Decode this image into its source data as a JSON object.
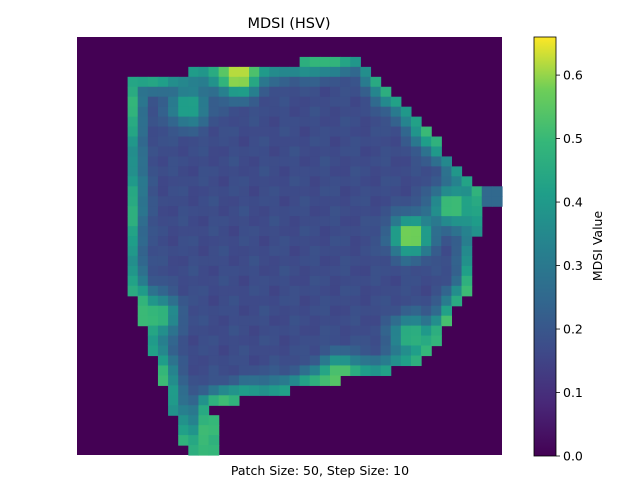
{
  "chart_data": {
    "type": "heatmap",
    "title": "MDSI (HSV)",
    "xlabel": "Patch Size: 50, Step Size: 10",
    "ylabel": "",
    "axes_visible": false,
    "colormap": "viridis",
    "grid_shape": [
      42,
      42
    ],
    "colorbar": {
      "label": "MDSI Value",
      "vmin": 0.0,
      "vmax": 0.66,
      "ticks": [
        0.0,
        0.1,
        0.2,
        0.3,
        0.4,
        0.5,
        0.6
      ],
      "tick_labels": [
        "0.0",
        "0.1",
        "0.2",
        "0.3",
        "0.4",
        "0.5",
        "0.6"
      ]
    },
    "region": {
      "description_values": {
        "background": 0.0,
        "interior_mean": 0.17,
        "border_mean": 0.45,
        "hotspots_max": 0.66
      },
      "polygon": [
        [
          5,
          4
        ],
        [
          28,
          2
        ],
        [
          36,
          11
        ],
        [
          40,
          15
        ],
        [
          39,
          25
        ],
        [
          34,
          33
        ],
        [
          13,
          37
        ],
        [
          12,
          42
        ],
        [
          11,
          42
        ],
        [
          5,
          24
        ]
      ],
      "notch": {
        "x": [
          39,
          42
        ],
        "y": [
          15,
          17
        ],
        "value": 0.25
      },
      "stem": {
        "x": [
          11,
          14
        ],
        "y": [
          38,
          42
        ],
        "value": 0.5
      },
      "hotspots": [
        {
          "x": 16,
          "y": 4,
          "value": 0.64
        },
        {
          "x": 33,
          "y": 20,
          "value": 0.64
        },
        {
          "x": 37,
          "y": 17,
          "value": 0.55
        },
        {
          "x": 8,
          "y": 28,
          "value": 0.52
        },
        {
          "x": 26,
          "y": 34,
          "value": 0.55
        },
        {
          "x": 33,
          "y": 30,
          "value": 0.5
        },
        {
          "x": 11,
          "y": 7,
          "value": 0.45
        }
      ]
    }
  }
}
